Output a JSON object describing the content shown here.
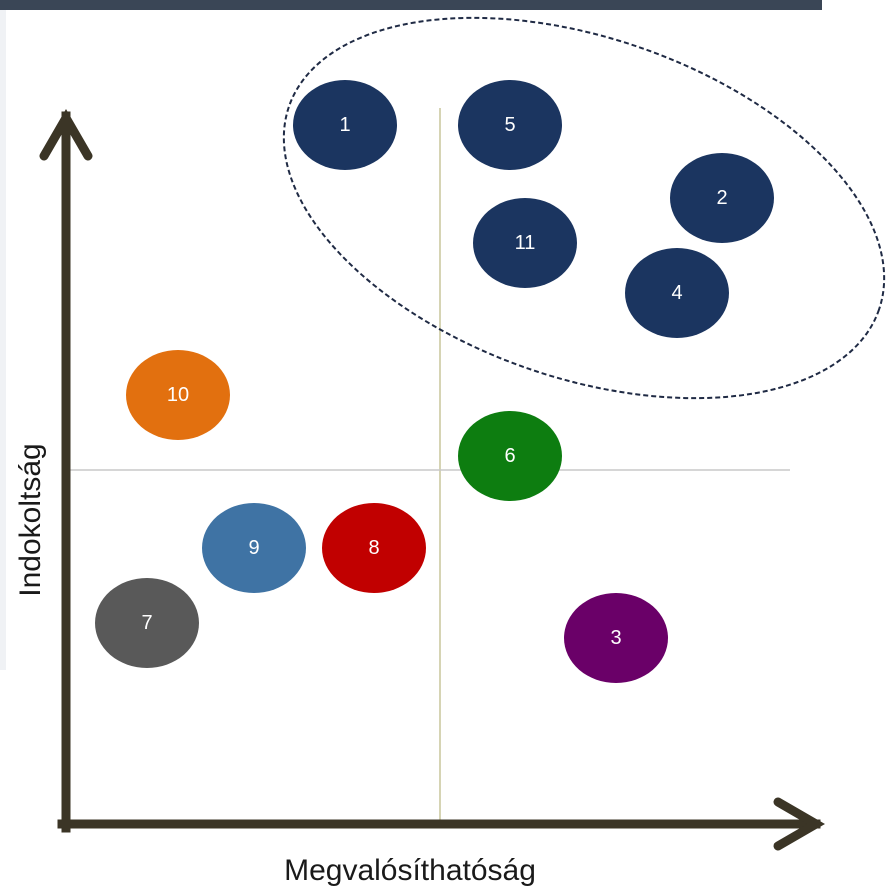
{
  "diagram": {
    "x_axis_label": "Megvalósíthatóság",
    "y_axis_label": "Indokoltság",
    "colors": {
      "top_bar": "#3a4656",
      "left_bar": "#f0f2f5",
      "axis": "#3b3526",
      "divider_vertical": "#d6d4b4",
      "divider_horizontal": "#c8c8c8",
      "cluster_outline": "#1f2a44"
    },
    "bubbles": [
      {
        "id": "1",
        "label": "1",
        "color": "#1b3560"
      },
      {
        "id": "5",
        "label": "5",
        "color": "#1b3560"
      },
      {
        "id": "2",
        "label": "2",
        "color": "#1b3560"
      },
      {
        "id": "11",
        "label": "11",
        "color": "#1b3560"
      },
      {
        "id": "4",
        "label": "4",
        "color": "#1b3560"
      },
      {
        "id": "10",
        "label": "10",
        "color": "#e2700f"
      },
      {
        "id": "6",
        "label": "6",
        "color": "#0d7d10"
      },
      {
        "id": "9",
        "label": "9",
        "color": "#3f73a4"
      },
      {
        "id": "8",
        "label": "8",
        "color": "#c10000"
      },
      {
        "id": "7",
        "label": "7",
        "color": "#595959"
      },
      {
        "id": "3",
        "label": "3",
        "color": "#6a0068"
      }
    ]
  }
}
